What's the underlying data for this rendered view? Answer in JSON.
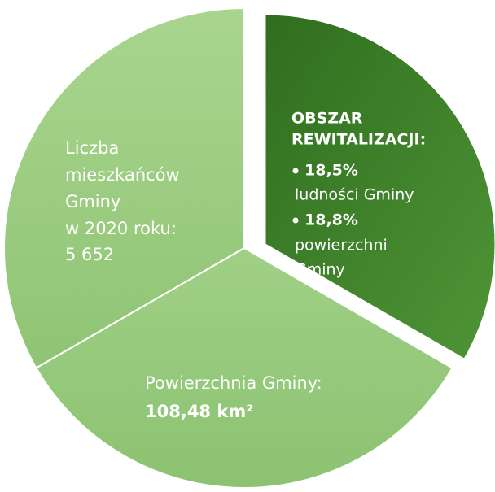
{
  "segments": [
    {
      "lines": [
        "Liczba",
        "mieszkańców",
        "Gminy",
        "w 2020 roku:",
        "5 652"
      ]
    },
    {
      "label": "Powierzchnia Gminy:",
      "value": "108,48 km²"
    },
    {
      "heading": [
        "OBSZAR",
        "REWITALIZACJI:"
      ],
      "bullets": [
        {
          "value": "18,5%",
          "lines": [
            "ludności Gminy"
          ]
        },
        {
          "value": "18,8%",
          "lines": [
            "powierzchni",
            "Gminy"
          ]
        }
      ]
    }
  ]
}
